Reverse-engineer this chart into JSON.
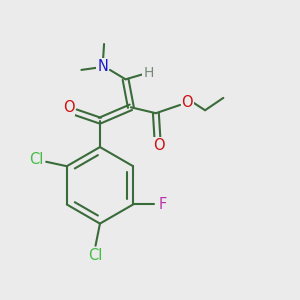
{
  "bg": "#ebebeb",
  "bc": "#3a6b3a",
  "lw": 1.5,
  "sep": 0.1,
  "fs": 10.5,
  "col": {
    "N": "#1a1acc",
    "O": "#cc1111",
    "Cl": "#44bb44",
    "F": "#bb33aa",
    "H": "#778877"
  },
  "xlim": [
    0,
    10
  ],
  "ylim": [
    0,
    10
  ]
}
